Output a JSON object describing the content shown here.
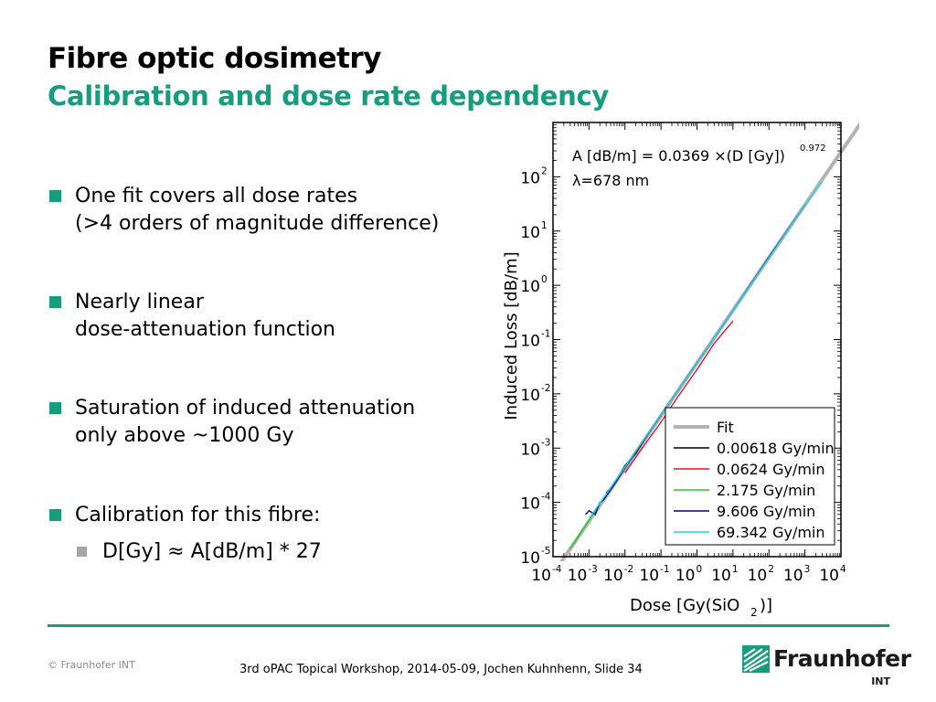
{
  "slide": {
    "title": "Fibre optic dosimetry",
    "subtitle": "Calibration and dose rate dependency"
  },
  "bullets": [
    {
      "lines": [
        "One fit covers all dose rates",
        "(>4 orders of magnitude difference)"
      ]
    },
    {
      "lines": [
        "Nearly linear",
        "dose-attenuation function"
      ]
    },
    {
      "lines": [
        "Saturation of induced attenuation",
        "only above ~1000 Gy"
      ]
    },
    {
      "lines": [
        "Calibration for this fibre:"
      ]
    }
  ],
  "sub_bullet": "D[Gy] ≈ A[dB/m] * 27",
  "footer": {
    "copyright": "© Fraunhofer INT",
    "text": "3rd oPAC Topical Workshop, 2014-05-09, Jochen Kuhnhenn, Slide 34",
    "logo_name": "Fraunhofer",
    "logo_sub": "INT"
  },
  "colors": {
    "accent": "#179c7d",
    "sub_bullet": "#a6a6a6"
  },
  "chart_data": {
    "type": "line",
    "x_scale": "log",
    "y_scale": "log",
    "xlim": [
      0.0001,
      10000
    ],
    "ylim": [
      1e-05,
      1000
    ],
    "xlabel": "Dose [Gy(SiO 2)]",
    "ylabel": "Induced Loss [dB/m]",
    "x_ticks": [
      "-4",
      "-3",
      "-2",
      "-1",
      "0",
      "1",
      "2",
      "3",
      "4"
    ],
    "y_ticks": [
      "-5",
      "-4",
      "-3",
      "-2",
      "-1",
      "0",
      "1",
      "2"
    ],
    "annotation": {
      "formula": "A [dB/m] = 0.0369 ×(D [Gy])",
      "exponent": "0.972",
      "wavelength": "λ=678 nm"
    },
    "fit": {
      "name": "Fit",
      "coefficient": 0.0369,
      "exponent": 0.972,
      "color": "#b3b3b3"
    },
    "legend_position": "bottom-right",
    "series": [
      {
        "name": "0.00618 Gy/min",
        "color": "#000000",
        "x": [
          0.003,
          0.005,
          0.01,
          0.02,
          0.05,
          0.1
        ],
        "y": [
          0.00015,
          0.00022,
          0.00048,
          0.0008,
          0.0021,
          0.004
        ]
      },
      {
        "name": "0.0624 Gy/min",
        "color": "#e8112d",
        "x": [
          0.01,
          0.03,
          0.1,
          0.3,
          1,
          3,
          10
        ],
        "y": [
          0.00035,
          0.001,
          0.003,
          0.009,
          0.028,
          0.085,
          0.22
        ]
      },
      {
        "name": "2.175 Gy/min",
        "color": "#22cc22",
        "x": [
          0.0003,
          0.001,
          0.01,
          0.1,
          1,
          10
        ],
        "y": [
          1.4e-05,
          4.7e-05,
          0.00046,
          0.0041,
          0.037,
          0.34
        ]
      },
      {
        "name": "9.606 Gy/min",
        "color": "#000099",
        "x": [
          0.0008,
          0.001,
          0.0015,
          0.002,
          0.0025,
          0.004,
          0.01,
          0.1,
          1,
          10,
          100,
          1000
        ],
        "y": [
          6e-05,
          7e-05,
          6e-05,
          0.0001,
          0.00011,
          0.00017,
          0.00043,
          0.0041,
          0.037,
          0.34,
          3.3,
          30
        ]
      },
      {
        "name": "69.342 Gy/min",
        "color": "#1fd3f0",
        "x": [
          0.001,
          0.01,
          0.1,
          1,
          10,
          100,
          1000,
          3000
        ],
        "y": [
          5e-05,
          0.00045,
          0.0041,
          0.037,
          0.34,
          3.2,
          30,
          80
        ]
      }
    ]
  }
}
